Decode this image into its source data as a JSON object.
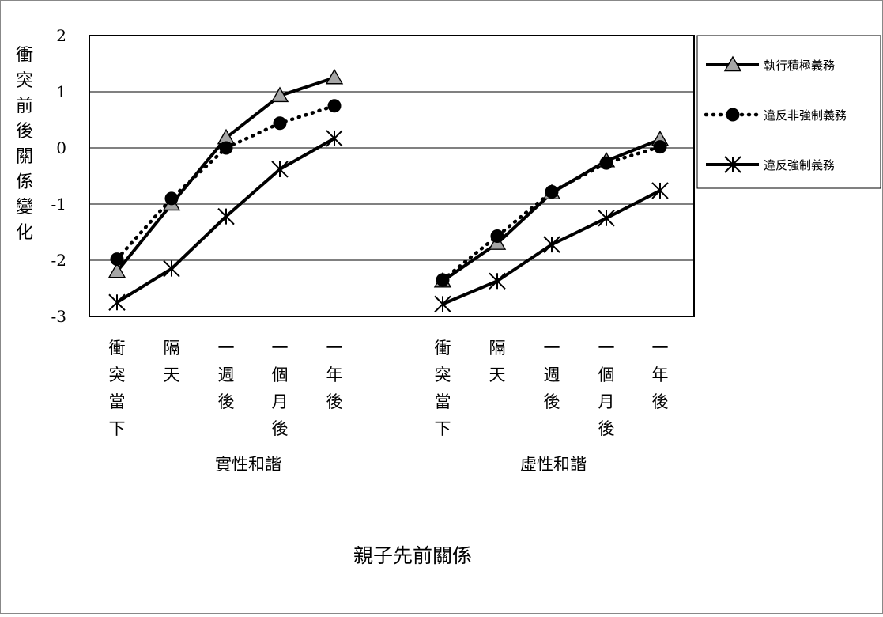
{
  "chart_data": {
    "type": "line",
    "ylabel": "衝突前後關係變化",
    "xlabel": "親子先前關係",
    "ylim": [
      -3,
      2
    ],
    "yticks": [
      2,
      1,
      0,
      -1,
      -2,
      -3
    ],
    "grid": "horizontal",
    "legend_position": "right",
    "groups": [
      {
        "name": "實性和諧",
        "categories": [
          "衝突當下",
          "隔天",
          "一週後",
          "一個月後",
          "一年後"
        ]
      },
      {
        "name": "虛性和諧",
        "categories": [
          "衝突當下",
          "隔天",
          "一週後",
          "一個月後",
          "一年後"
        ]
      }
    ],
    "series": [
      {
        "name": "執行積極義務",
        "line": "solid",
        "marker": "triangle",
        "color": "#000000",
        "marker_fill": "#a6a6a6",
        "values": [
          [
            -2.2,
            -1.0,
            0.18,
            0.93,
            1.25
          ],
          [
            -2.37,
            -1.7,
            -0.8,
            -0.23,
            0.15
          ]
        ]
      },
      {
        "name": "違反非強制義務",
        "line": "dotted",
        "marker": "circle",
        "color": "#000000",
        "marker_fill": "#000000",
        "values": [
          [
            -1.98,
            -0.9,
            0.0,
            0.44,
            0.75
          ],
          [
            -2.35,
            -1.57,
            -0.78,
            -0.27,
            0.02
          ]
        ]
      },
      {
        "name": "違反強制義務",
        "line": "solid",
        "marker": "asterisk",
        "color": "#000000",
        "marker_fill": "#000000",
        "values": [
          [
            -2.75,
            -2.15,
            -1.22,
            -0.38,
            0.17
          ],
          [
            -2.78,
            -2.37,
            -1.72,
            -1.25,
            -0.76
          ]
        ]
      }
    ]
  }
}
